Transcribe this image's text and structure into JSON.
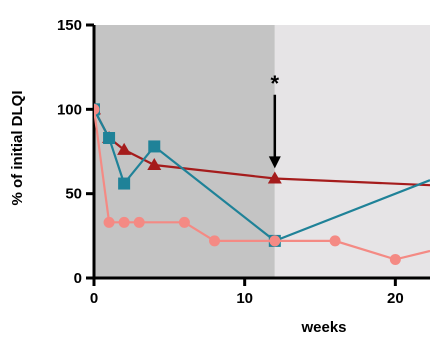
{
  "chart_data": {
    "type": "line",
    "xlabel": "weeks",
    "ylabel": "% of initial DLQI",
    "xlim": [
      0,
      22.3
    ],
    "ylim": [
      0,
      150
    ],
    "x_ticks": [
      0,
      10,
      20
    ],
    "y_ticks": [
      0,
      50,
      100,
      150
    ],
    "grid": false,
    "shaded_regions": [
      {
        "x_start": 0,
        "x_end": 12,
        "color": "#c4c4c4"
      },
      {
        "x_start": 12,
        "x_end": 22.3,
        "color": "#e6e4e6"
      }
    ],
    "annotations": [
      {
        "text": "*",
        "x": 12,
        "y": 111,
        "arrow_to_y": 65
      }
    ],
    "series": [
      {
        "color": "#a51c1c",
        "marker": "triangle",
        "points": [
          [
            0,
            100
          ],
          [
            1,
            83
          ],
          [
            2,
            76
          ],
          [
            4,
            67
          ],
          [
            12,
            59
          ],
          [
            22.3,
            55
          ]
        ]
      },
      {
        "color": "#1f8298",
        "marker": "square",
        "points": [
          [
            0,
            100
          ],
          [
            1,
            83
          ],
          [
            2,
            56
          ],
          [
            4,
            78
          ],
          [
            12,
            22
          ],
          [
            22.3,
            58
          ]
        ]
      },
      {
        "color": "#f48a84",
        "marker": "circle",
        "points": [
          [
            0,
            100
          ],
          [
            1,
            33
          ],
          [
            2,
            33
          ],
          [
            3,
            33
          ],
          [
            6,
            33
          ],
          [
            8,
            22
          ],
          [
            12,
            22
          ],
          [
            16,
            22
          ],
          [
            20,
            11
          ],
          [
            22.3,
            16
          ]
        ]
      }
    ]
  }
}
